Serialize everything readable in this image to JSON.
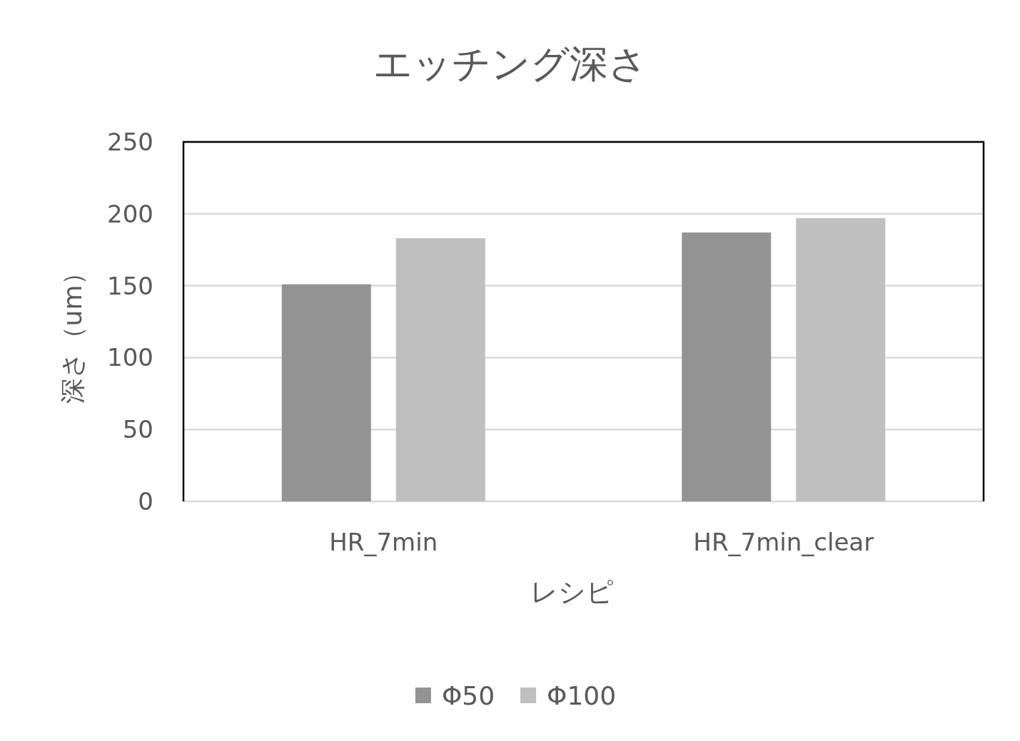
{
  "chart_data": {
    "type": "bar",
    "title": "エッチング深さ",
    "xlabel": "レシピ",
    "ylabel": "深さ（um）",
    "categories": [
      "HR_7min",
      "HR_7min_clear"
    ],
    "series": [
      {
        "name": "Φ50",
        "color": "#939393",
        "values": [
          151,
          187
        ]
      },
      {
        "name": "Φ100",
        "color": "#bfbfbf",
        "values": [
          183,
          197
        ]
      }
    ],
    "ylim": [
      0,
      250
    ],
    "yticks": [
      0,
      50,
      100,
      150,
      200,
      250
    ],
    "grid": "y",
    "legend": "bottom"
  }
}
